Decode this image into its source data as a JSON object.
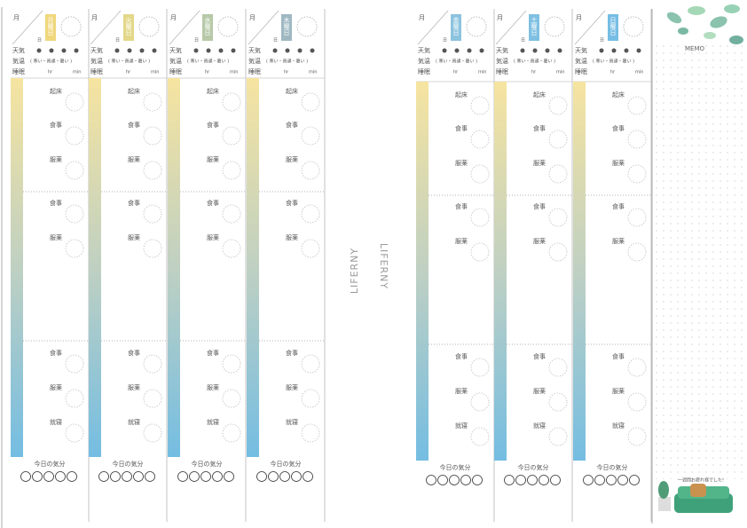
{
  "logo": "LIFERNY",
  "labels": {
    "month": "月",
    "day": "日",
    "weather": "天気",
    "temp": "気温",
    "temp_options": "( 寒い・普通・暑い )",
    "sleep": "睡眠",
    "hr": "hr",
    "min": "min",
    "mood": "今日の気分"
  },
  "days": [
    {
      "name": "月曜日",
      "color": "#f0d77c"
    },
    {
      "name": "火曜日",
      "color": "#e3d88a"
    },
    {
      "name": "水曜日",
      "color": "#b7c9a8"
    },
    {
      "name": "木曜日",
      "color": "#9fb8c2"
    },
    {
      "name": "金曜日",
      "color": "#8cc3de"
    },
    {
      "name": "土曜日",
      "color": "#7fc0e2"
    },
    {
      "name": "日曜日",
      "color": "#76bde3"
    }
  ],
  "events": [
    "起床",
    "食事",
    "服薬",
    "食事",
    "服薬",
    "食事",
    "服薬",
    "就寝"
  ],
  "memo": {
    "title": "MEMO",
    "note": "一週間お疲れ様でした!"
  }
}
